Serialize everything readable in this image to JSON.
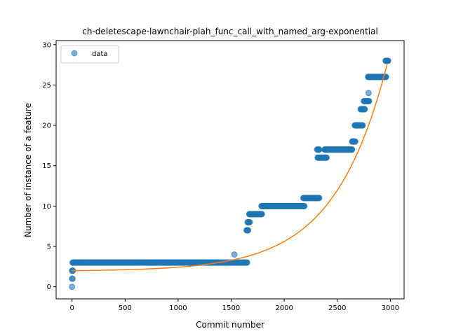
{
  "chart_data": {
    "type": "scatter",
    "title": "ch-deletescape-lawnchair-plah_func_call_with_named_arg-exponential",
    "xlabel": "Commit number",
    "ylabel": "Number of instance of a feature",
    "xlim": [
      -150,
      3130
    ],
    "ylim": [
      -1.5,
      30.5
    ],
    "xticks": [
      0,
      500,
      1000,
      1500,
      2000,
      2500,
      3000
    ],
    "yticks": [
      0,
      5,
      10,
      15,
      20,
      25,
      30
    ],
    "grid": false,
    "legend": {
      "placement": "top-left",
      "entries": [
        "data"
      ]
    },
    "colors": {
      "data": "#1f77b4",
      "fit": "#ff7f0e"
    },
    "series": [
      {
        "name": "data",
        "kind": "scatter",
        "segments": [
          {
            "x_start": 0,
            "x_end": 0,
            "y": 0
          },
          {
            "x_start": 0,
            "x_end": 5,
            "y": 1
          },
          {
            "x_start": 0,
            "x_end": 8,
            "y": 2
          },
          {
            "x_start": 5,
            "x_end": 1650,
            "y": 3
          },
          {
            "x_start": 1530,
            "x_end": 1530,
            "y": 4
          },
          {
            "x_start": 1645,
            "x_end": 1660,
            "y": 7
          },
          {
            "x_start": 1655,
            "x_end": 1675,
            "y": 8
          },
          {
            "x_start": 1670,
            "x_end": 1790,
            "y": 9
          },
          {
            "x_start": 1785,
            "x_end": 2190,
            "y": 10
          },
          {
            "x_start": 2180,
            "x_end": 2330,
            "y": 11
          },
          {
            "x_start": 2310,
            "x_end": 2330,
            "y": 17
          },
          {
            "x_start": 2315,
            "x_end": 2400,
            "y": 16
          },
          {
            "x_start": 2380,
            "x_end": 2640,
            "y": 17
          },
          {
            "x_start": 2640,
            "x_end": 2670,
            "y": 18
          },
          {
            "x_start": 2665,
            "x_end": 2740,
            "y": 20
          },
          {
            "x_start": 2720,
            "x_end": 2760,
            "y": 22
          },
          {
            "x_start": 2750,
            "x_end": 2800,
            "y": 23
          },
          {
            "x_start": 2795,
            "x_end": 2795,
            "y": 24
          },
          {
            "x_start": 2790,
            "x_end": 2960,
            "y": 26
          },
          {
            "x_start": 2955,
            "x_end": 2980,
            "y": 28
          }
        ]
      },
      {
        "name": "",
        "kind": "line",
        "model": {
          "form": "a*exp(b*x)+c",
          "a": 0.0675,
          "b": 0.002,
          "c": 1.93
        },
        "x_range": [
          0,
          2970
        ]
      }
    ]
  }
}
